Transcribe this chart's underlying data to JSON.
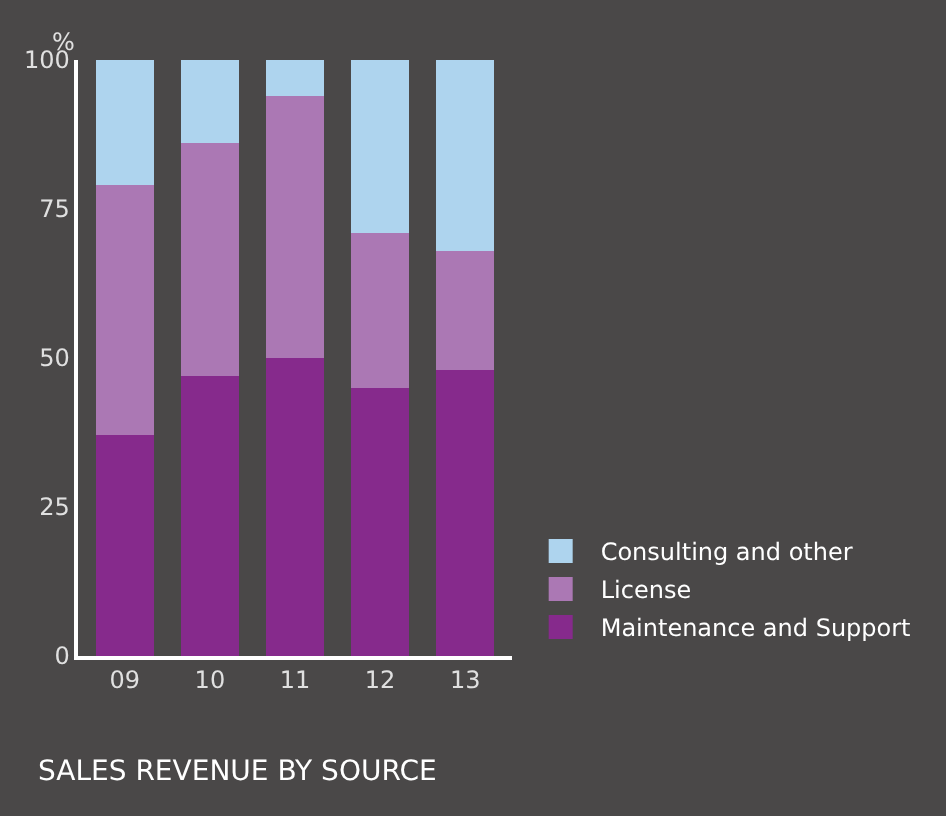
{
  "chart_data": {
    "type": "bar",
    "stacked": true,
    "title": "SALES REVENUE BY SOURCE",
    "ylabel": "%",
    "categories": [
      "09",
      "10",
      "11",
      "12",
      "13"
    ],
    "series": [
      {
        "name": "Maintenance and Support",
        "color": "#862a8c",
        "values": [
          37,
          47,
          50,
          45,
          48
        ]
      },
      {
        "name": "License",
        "color": "#ab78b4",
        "values": [
          42,
          39,
          44,
          26,
          20
        ]
      },
      {
        "name": "Consulting and other",
        "color": "#aed4ee",
        "values": [
          21,
          14,
          6,
          29,
          32
        ]
      }
    ],
    "ylim": [
      0,
      100
    ],
    "yticks": [
      0,
      25,
      50,
      75,
      100
    ],
    "grid": false,
    "legend": "bottom right"
  }
}
